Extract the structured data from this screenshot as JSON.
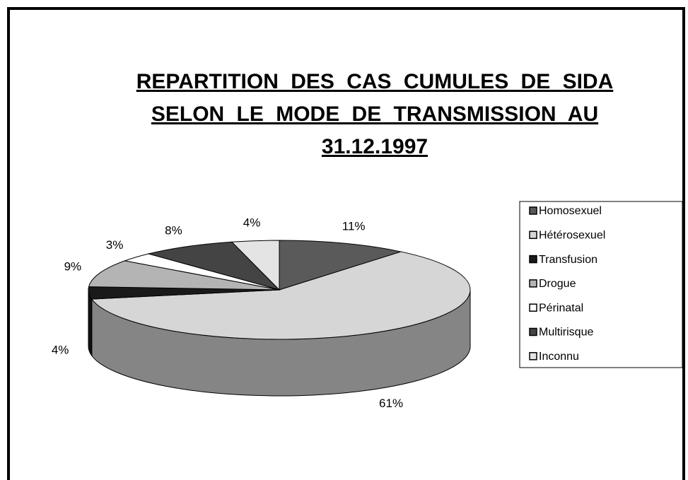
{
  "chart_data": {
    "type": "pie",
    "title": "REPARTITION DES CAS CUMULES DE SIDA SELON LE MODE DE TRANSMISSION AU 31.12.1997",
    "categories": [
      "Homosexuel",
      "Hétérosexuel",
      "Transfusion",
      "Drogue",
      "Périnatal",
      "Multirisque",
      "Inconnu"
    ],
    "values": [
      11,
      61,
      4,
      9,
      3,
      8,
      4
    ],
    "value_labels": [
      "11%",
      "61%",
      "4%",
      "9%",
      "3%",
      "8%",
      "4%"
    ],
    "colors": [
      "#5a5a5a",
      "#d6d6d6",
      "#1a1a1a",
      "#b4b4b4",
      "#ffffff",
      "#444444",
      "#e4e4e4"
    ],
    "legend": "right"
  }
}
